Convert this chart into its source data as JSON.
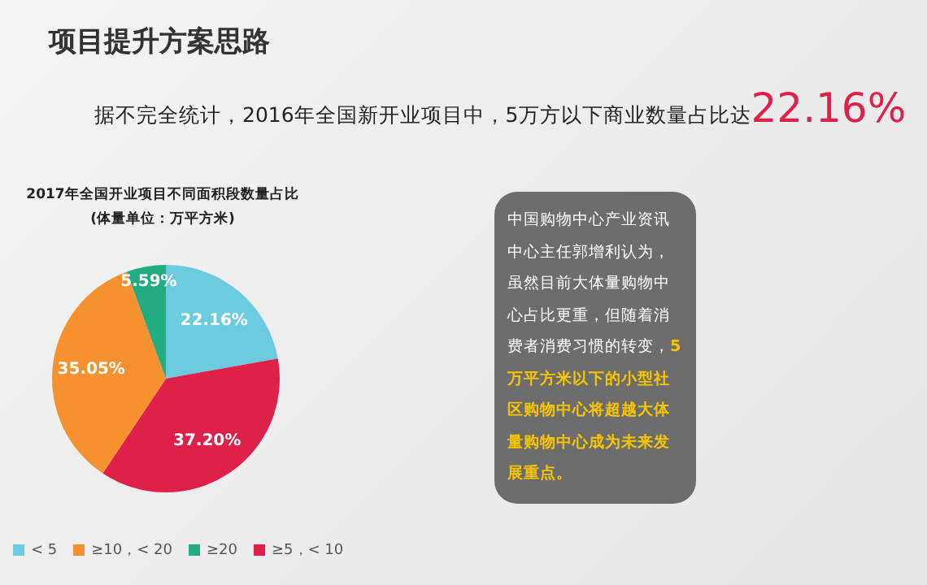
{
  "chart_data": {
    "type": "pie",
    "title": "2017年全国开业项目不同面积段数量占比",
    "subtitle": "(体量单位：万平方米)",
    "categories": [
      "< 5",
      "≥5，< 10",
      "≥10，< 20",
      "≥20"
    ],
    "values": [
      22.16,
      37.2,
      35.05,
      5.59
    ],
    "colors": [
      "#6dcbe0",
      "#de2149",
      "#f5922f",
      "#23ac82"
    ],
    "value_labels": [
      "22.16%",
      "37.20%",
      "35.05%",
      "5.59%"
    ],
    "legend": "bottom",
    "annotations": [
      "项目提升方案思路",
      "据不完全统计，2016年全国新开业项目中，5万方以下商业数量占比达",
      "22.16%",
      "中国购物中心产业资讯中心主任郭增利认为，虽然目前大体量购物中心占比更重，但随着消费者消费习惯的转变，",
      "5万平方米以下的小型社区购物中心将超越大体量购物中心成为未来发展重点。"
    ]
  }
}
